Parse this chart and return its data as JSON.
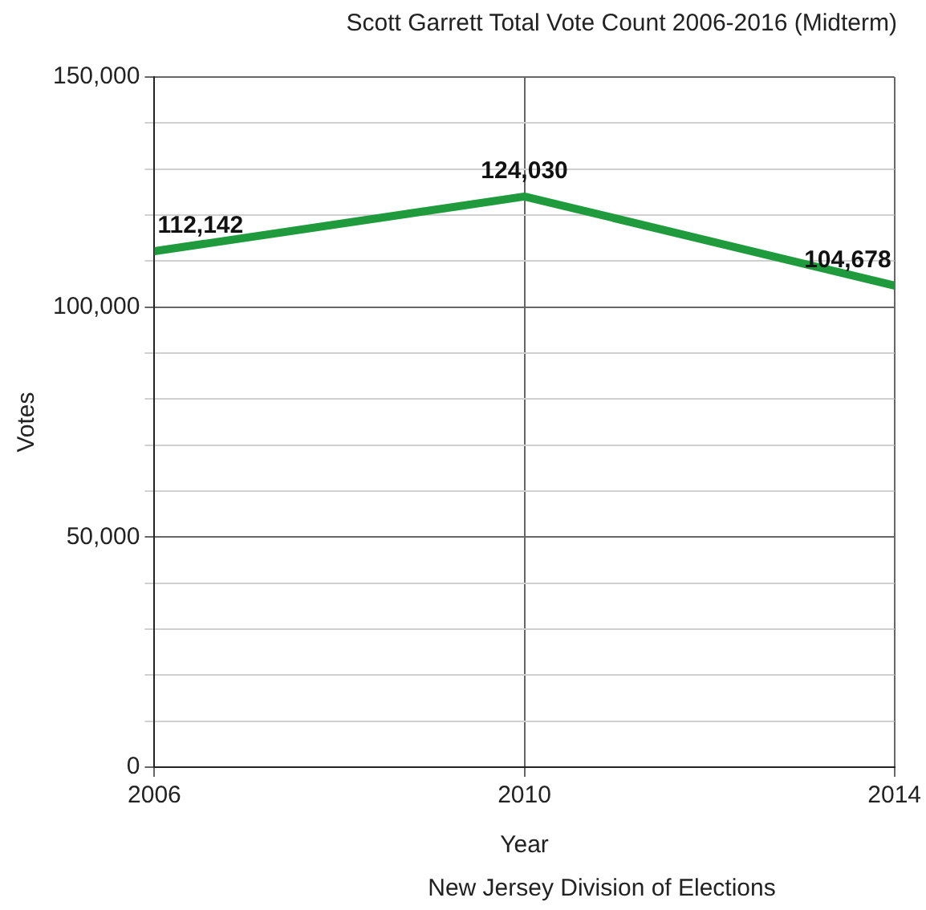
{
  "chart_data": {
    "type": "line",
    "title": "Scott Garrett Total Vote Count 2006-2016 (Midterm)",
    "xlabel": "Year",
    "ylabel": "Votes",
    "x": [
      2006,
      2010,
      2014
    ],
    "series": [
      {
        "color": "#1f9a3c",
        "values": [
          112142,
          124030,
          104678
        ],
        "value_labels": [
          "112,142",
          "124,030",
          "104,678"
        ]
      }
    ],
    "xlim": [
      2006,
      2014
    ],
    "xticks": [
      2006,
      2010,
      2014
    ],
    "ylim": [
      0,
      150000
    ],
    "yticks": [
      {
        "value": 0,
        "label": "0"
      },
      {
        "value": 10000,
        "label": null
      },
      {
        "value": 20000,
        "label": null
      },
      {
        "value": 30000,
        "label": null
      },
      {
        "value": 40000,
        "label": null
      },
      {
        "value": 50000,
        "label": "50,000"
      },
      {
        "value": 60000,
        "label": null
      },
      {
        "value": 70000,
        "label": null
      },
      {
        "value": 80000,
        "label": null
      },
      {
        "value": 90000,
        "label": null
      },
      {
        "value": 100000,
        "label": "100,000"
      },
      {
        "value": 110000,
        "label": null
      },
      {
        "value": 120000,
        "label": null
      },
      {
        "value": 130000,
        "label": null
      },
      {
        "value": 140000,
        "label": null
      },
      {
        "value": 150000,
        "label": "150,000"
      }
    ],
    "grid": true,
    "legend": false,
    "marker": "none",
    "line_style": "solid",
    "annotations": [
      "New Jersey Division of Elections"
    ]
  }
}
